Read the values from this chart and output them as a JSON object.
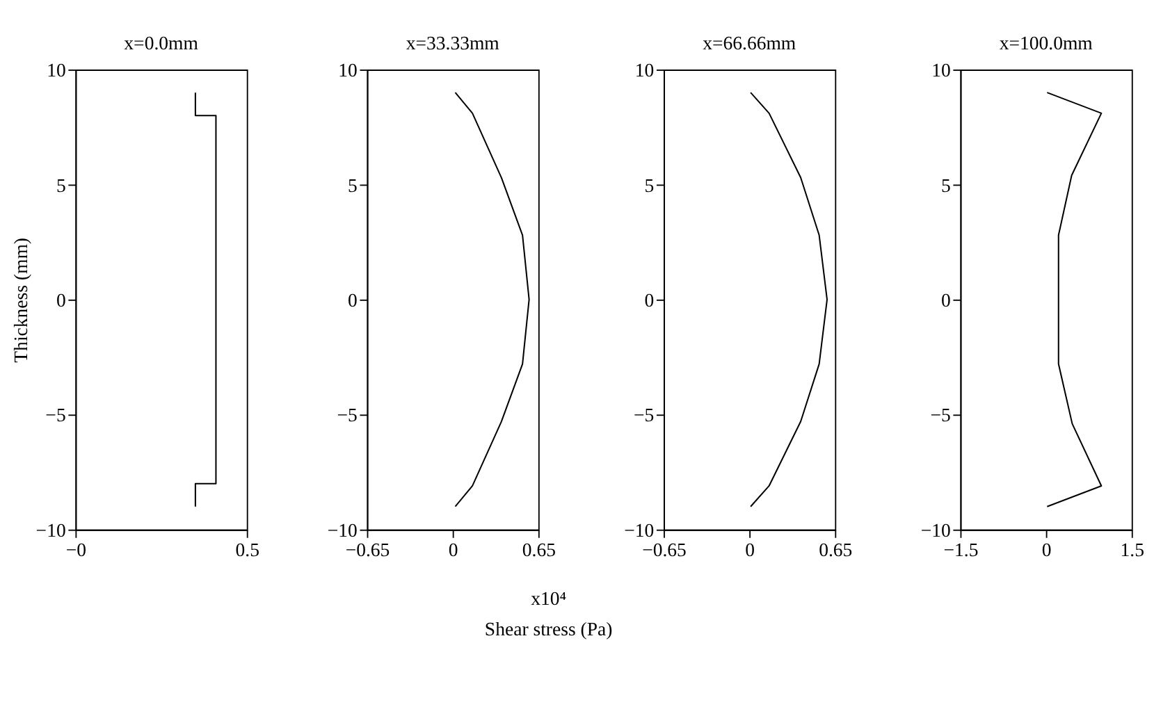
{
  "chart_data": [
    {
      "type": "line",
      "title": "x=0.0mm",
      "ylabel": "Thickness (mm)",
      "xlim": [
        0,
        0.5
      ],
      "xticks": [
        {
          "value": 0,
          "label": "−0"
        },
        0.5
      ],
      "ylim": [
        -10,
        10
      ],
      "yticks": [
        -10,
        -5,
        0,
        5,
        10
      ],
      "grid": false,
      "line_style": "solid",
      "marker": "none",
      "series": [
        {
          "color": "#000000",
          "x": [
            0.35,
            0.35,
            0.41,
            0.41,
            0.35,
            0.35
          ],
          "values": [
            9,
            8,
            8,
            -8,
            -8,
            -9
          ]
        }
      ]
    },
    {
      "type": "line",
      "title": "x=33.33mm",
      "xlabel": "Shear stress (Pa)",
      "annotations": [
        "x10⁴"
      ],
      "xlim": [
        -0.65,
        0.65
      ],
      "xticks": [
        -0.65,
        0,
        0.65
      ],
      "ylim": [
        -10,
        10
      ],
      "yticks": [
        -10,
        -5,
        0,
        5,
        10
      ],
      "grid": false,
      "line_style": "solid",
      "marker": "none",
      "series": [
        {
          "color": "#000000",
          "x": [
            0.02,
            0.15,
            0.37,
            0.53,
            0.58,
            0.53,
            0.37,
            0.15,
            0.02
          ],
          "values": [
            9,
            8.1,
            5.3,
            2.8,
            0,
            -2.8,
            -5.3,
            -8.1,
            -9
          ]
        }
      ]
    },
    {
      "type": "line",
      "title": "x=66.66mm",
      "xlim": [
        -0.65,
        0.65
      ],
      "xticks": [
        -0.65,
        0,
        0.65
      ],
      "ylim": [
        -10,
        10
      ],
      "yticks": [
        -10,
        -5,
        0,
        5,
        10
      ],
      "grid": false,
      "line_style": "solid",
      "marker": "none",
      "series": [
        {
          "color": "#000000",
          "x": [
            0.01,
            0.15,
            0.39,
            0.53,
            0.59,
            0.53,
            0.39,
            0.15,
            0.01
          ],
          "values": [
            9,
            8.1,
            5.3,
            2.8,
            0,
            -2.8,
            -5.3,
            -8.1,
            -9
          ]
        }
      ]
    },
    {
      "type": "line",
      "title": "x=100.0mm",
      "xlim": [
        -1.5,
        1.5
      ],
      "xticks": [
        -1.5,
        0,
        1.5
      ],
      "ylim": [
        -10,
        10
      ],
      "yticks": [
        -10,
        -5,
        0,
        5,
        10
      ],
      "grid": false,
      "line_style": "solid",
      "marker": "none",
      "series": [
        {
          "color": "#000000",
          "x": [
            0.02,
            0.97,
            0.45,
            0.22,
            0.22,
            0.22,
            0.46,
            0.97,
            0.02
          ],
          "values": [
            9,
            8.1,
            5.4,
            2.8,
            0,
            -2.8,
            -5.4,
            -8.1,
            -9
          ]
        }
      ]
    }
  ]
}
